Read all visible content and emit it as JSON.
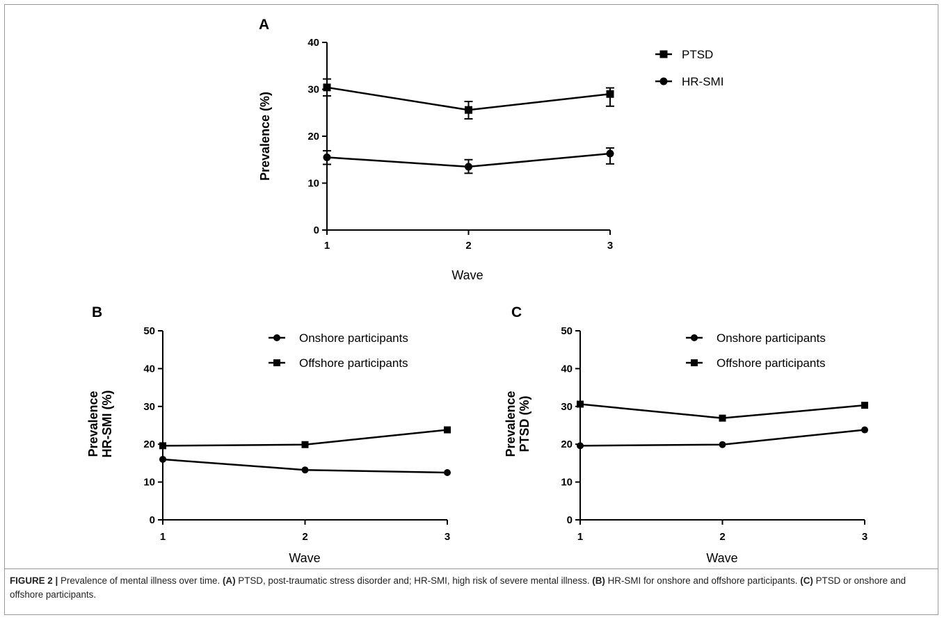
{
  "caption": {
    "prefix": "FIGURE 2 |",
    "intro": "Prevalence of mental illness over time.",
    "a_tag": "(A)",
    "a_text": "PTSD, post-traumatic stress disorder and; HR-SMI, high risk of severe mental illness.",
    "b_tag": "(B)",
    "b_text": "HR-SMI for onshore and offshore participants.",
    "c_tag": "(C)",
    "c_text": "PTSD or onshore and offshore participants."
  },
  "chart_data": [
    {
      "panel": "A",
      "type": "line",
      "xlabel": "Wave",
      "ylabel": "Prevalence (%)",
      "x": [
        1,
        2,
        3
      ],
      "xticks": [
        "1",
        "2",
        "3"
      ],
      "ylim": [
        0,
        40
      ],
      "yticks": [
        "0",
        "10",
        "20",
        "30",
        "40"
      ],
      "legend_position": "top-right",
      "grid": false,
      "series": [
        {
          "name": "PTSD",
          "marker": "square",
          "values": [
            30.4,
            25.6,
            29.0
          ],
          "err_low": [
            28.6,
            23.7,
            26.4
          ],
          "err_high": [
            32.2,
            27.4,
            30.3
          ]
        },
        {
          "name": "HR-SMI",
          "marker": "circle",
          "values": [
            15.5,
            13.5,
            16.3
          ],
          "err_low": [
            14.0,
            12.1,
            14.1
          ],
          "err_high": [
            16.9,
            15.0,
            17.5
          ]
        }
      ]
    },
    {
      "panel": "B",
      "type": "line",
      "xlabel": "Wave",
      "ylabel": "Prevalence HR-SMI (%)",
      "ylabel_lines": [
        "Prevalence",
        "HR-SMI (%)"
      ],
      "x": [
        1,
        2,
        3
      ],
      "xticks": [
        "1",
        "2",
        "3"
      ],
      "ylim": [
        0,
        50
      ],
      "yticks": [
        "0",
        "10",
        "20",
        "30",
        "40",
        "50"
      ],
      "legend_position": "top-right",
      "grid": false,
      "series": [
        {
          "name": "Onshore participants",
          "marker": "circle",
          "values": [
            16.0,
            13.2,
            12.5
          ]
        },
        {
          "name": "Offshore participants",
          "marker": "square",
          "values": [
            19.6,
            19.9,
            23.8
          ]
        }
      ]
    },
    {
      "panel": "C",
      "type": "line",
      "xlabel": "Wave",
      "ylabel": "Prevalence PTSD (%)",
      "ylabel_lines": [
        "Prevalence",
        "PTSD (%)"
      ],
      "x": [
        1,
        2,
        3
      ],
      "xticks": [
        "1",
        "2",
        "3"
      ],
      "ylim": [
        0,
        50
      ],
      "yticks": [
        "0",
        "10",
        "20",
        "30",
        "40",
        "50"
      ],
      "legend_position": "top-right",
      "grid": false,
      "series": [
        {
          "name": "Onshore participants",
          "marker": "circle",
          "values": [
            19.6,
            19.9,
            23.8
          ]
        },
        {
          "name": "Offshore participants",
          "marker": "square",
          "values": [
            30.6,
            26.9,
            30.3
          ]
        }
      ]
    }
  ]
}
